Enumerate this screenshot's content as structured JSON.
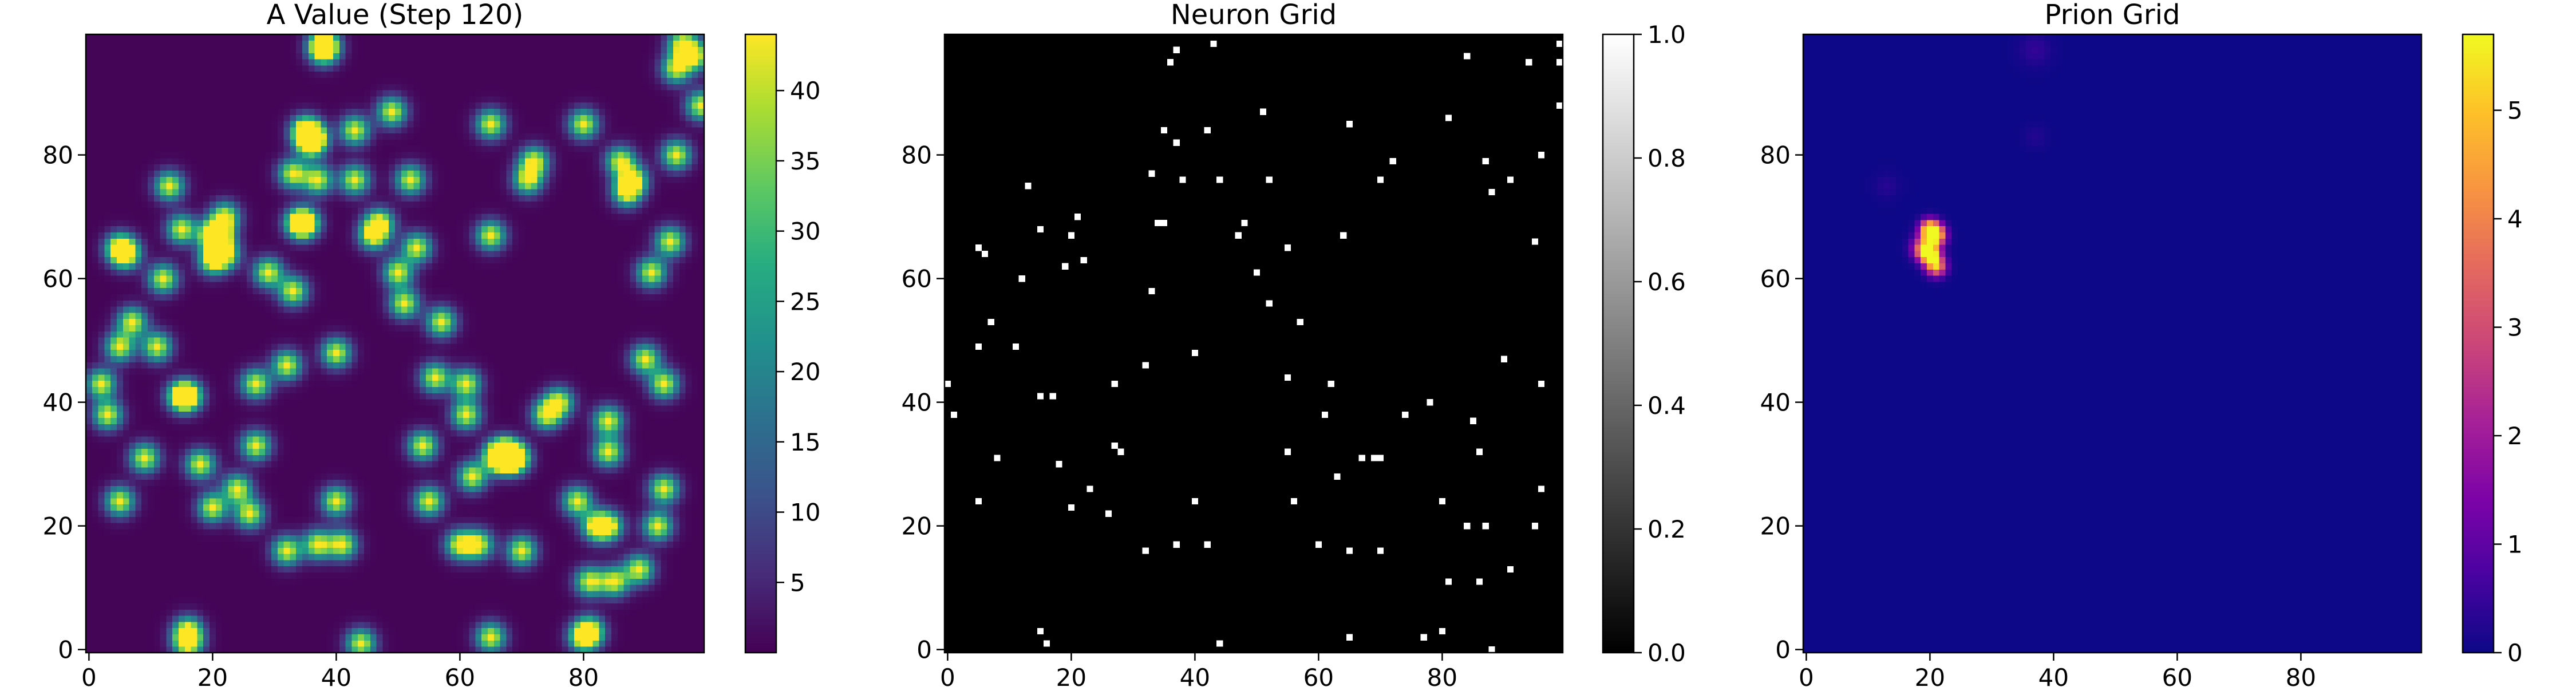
{
  "figure": {
    "background": "#ffffff"
  },
  "chart_data": [
    {
      "type": "heatmap",
      "title": "A Value (Step 120)",
      "colormap": "viridis",
      "grid_size": 100,
      "xlim": [
        0,
        99
      ],
      "ylim": [
        0,
        99
      ],
      "x_ticks": [
        0,
        20,
        40,
        60,
        80
      ],
      "y_ticks": [
        0,
        20,
        40,
        60,
        80
      ],
      "colorbar": {
        "min": 0,
        "max": 44,
        "ticks": [
          5,
          10,
          15,
          20,
          25,
          30,
          35,
          40
        ]
      },
      "field": {
        "base": 0.5,
        "peak": 43,
        "spread_cells": 1.6,
        "hotspots": [
          [
            2,
            43
          ],
          [
            3,
            38
          ],
          [
            5,
            24
          ],
          [
            5,
            49
          ],
          [
            5,
            65
          ],
          [
            6,
            64
          ],
          [
            7,
            53
          ],
          [
            9,
            31
          ],
          [
            11,
            49
          ],
          [
            12,
            60
          ],
          [
            13,
            75
          ],
          [
            15,
            41
          ],
          [
            15,
            68
          ],
          [
            16,
            41
          ],
          [
            16,
            3
          ],
          [
            16,
            1
          ],
          [
            18,
            30
          ],
          [
            20,
            63
          ],
          [
            20,
            67
          ],
          [
            20,
            23
          ],
          [
            21,
            67
          ],
          [
            22,
            64
          ],
          [
            22,
            70
          ],
          [
            24,
            26
          ],
          [
            26,
            22
          ],
          [
            27,
            33
          ],
          [
            27,
            43
          ],
          [
            29,
            61
          ],
          [
            32,
            16
          ],
          [
            32,
            46
          ],
          [
            33,
            58
          ],
          [
            33,
            77
          ],
          [
            34,
            69
          ],
          [
            35,
            69
          ],
          [
            35,
            84
          ],
          [
            36,
            83
          ],
          [
            36,
            82
          ],
          [
            37,
            17
          ],
          [
            37,
            76
          ],
          [
            38,
            98
          ],
          [
            38,
            97
          ],
          [
            40,
            48
          ],
          [
            40,
            24
          ],
          [
            41,
            17
          ],
          [
            43,
            84
          ],
          [
            43,
            76
          ],
          [
            44,
            1
          ],
          [
            46,
            67
          ],
          [
            47,
            69
          ],
          [
            49,
            87
          ],
          [
            50,
            61
          ],
          [
            51,
            56
          ],
          [
            52,
            76
          ],
          [
            53,
            65
          ],
          [
            54,
            33
          ],
          [
            55,
            24
          ],
          [
            56,
            44
          ],
          [
            57,
            53
          ],
          [
            60,
            17
          ],
          [
            61,
            38
          ],
          [
            61,
            43
          ],
          [
            62,
            28
          ],
          [
            63,
            17
          ],
          [
            65,
            67
          ],
          [
            65,
            85
          ],
          [
            65,
            2
          ],
          [
            66,
            31
          ],
          [
            67,
            32
          ],
          [
            68,
            31
          ],
          [
            69,
            31
          ],
          [
            70,
            16
          ],
          [
            71,
            76
          ],
          [
            72,
            79
          ],
          [
            74,
            38
          ],
          [
            76,
            40
          ],
          [
            79,
            24
          ],
          [
            80,
            2
          ],
          [
            80,
            85
          ],
          [
            81,
            11
          ],
          [
            81,
            3
          ],
          [
            82,
            20
          ],
          [
            84,
            20
          ],
          [
            84,
            32
          ],
          [
            84,
            37
          ],
          [
            85,
            11
          ],
          [
            86,
            79
          ],
          [
            87,
            74
          ],
          [
            88,
            76
          ],
          [
            89,
            13
          ],
          [
            90,
            47
          ],
          [
            91,
            61
          ],
          [
            92,
            20
          ],
          [
            93,
            26
          ],
          [
            93,
            43
          ],
          [
            94,
            66
          ],
          [
            95,
            80
          ],
          [
            95,
            94
          ],
          [
            96,
            98
          ],
          [
            98,
            96
          ],
          [
            99,
            88
          ]
        ]
      }
    },
    {
      "type": "heatmap",
      "title": "Neuron Grid",
      "colormap": "gray",
      "grid_size": 100,
      "xlim": [
        0,
        99
      ],
      "ylim": [
        0,
        99
      ],
      "x_ticks": [
        0,
        20,
        40,
        60,
        80
      ],
      "y_ticks": [
        0,
        20,
        40,
        60,
        80
      ],
      "colorbar": {
        "min": 0.0,
        "max": 1.0,
        "ticks": [
          "0.0",
          "0.2",
          "0.4",
          "0.6",
          "0.8",
          "1.0"
        ]
      },
      "cell_value_background": 0,
      "neurons": [
        [
          0,
          43
        ],
        [
          1,
          38
        ],
        [
          5,
          24
        ],
        [
          5,
          49
        ],
        [
          5,
          65
        ],
        [
          6,
          64
        ],
        [
          7,
          53
        ],
        [
          8,
          31
        ],
        [
          11,
          49
        ],
        [
          12,
          60
        ],
        [
          13,
          75
        ],
        [
          15,
          41
        ],
        [
          15,
          68
        ],
        [
          17,
          41
        ],
        [
          15,
          3
        ],
        [
          16,
          1
        ],
        [
          18,
          30
        ],
        [
          19,
          62
        ],
        [
          20,
          67
        ],
        [
          20,
          23
        ],
        [
          21,
          70
        ],
        [
          22,
          63
        ],
        [
          23,
          26
        ],
        [
          26,
          22
        ],
        [
          27,
          33
        ],
        [
          27,
          43
        ],
        [
          28,
          32
        ],
        [
          32,
          16
        ],
        [
          32,
          46
        ],
        [
          33,
          58
        ],
        [
          33,
          77
        ],
        [
          34,
          69
        ],
        [
          35,
          69
        ],
        [
          35,
          84
        ],
        [
          36,
          95
        ],
        [
          37,
          82
        ],
        [
          37,
          97
        ],
        [
          37,
          17
        ],
        [
          38,
          76
        ],
        [
          40,
          48
        ],
        [
          40,
          24
        ],
        [
          42,
          17
        ],
        [
          42,
          84
        ],
        [
          43,
          98
        ],
        [
          44,
          76
        ],
        [
          44,
          1
        ],
        [
          47,
          67
        ],
        [
          48,
          69
        ],
        [
          50,
          61
        ],
        [
          51,
          87
        ],
        [
          52,
          56
        ],
        [
          52,
          76
        ],
        [
          55,
          65
        ],
        [
          55,
          44
        ],
        [
          55,
          32
        ],
        [
          56,
          24
        ],
        [
          57,
          53
        ],
        [
          60,
          17
        ],
        [
          61,
          38
        ],
        [
          62,
          43
        ],
        [
          63,
          28
        ],
        [
          64,
          67
        ],
        [
          65,
          85
        ],
        [
          65,
          16
        ],
        [
          65,
          2
        ],
        [
          67,
          31
        ],
        [
          69,
          31
        ],
        [
          70,
          31
        ],
        [
          70,
          76
        ],
        [
          70,
          16
        ],
        [
          72,
          79
        ],
        [
          74,
          38
        ],
        [
          78,
          40
        ],
        [
          77,
          2
        ],
        [
          80,
          3
        ],
        [
          80,
          24
        ],
        [
          81,
          11
        ],
        [
          81,
          86
        ],
        [
          84,
          20
        ],
        [
          84,
          96
        ],
        [
          85,
          37
        ],
        [
          86,
          11
        ],
        [
          86,
          32
        ],
        [
          87,
          79
        ],
        [
          87,
          20
        ],
        [
          88,
          74
        ],
        [
          88,
          0
        ],
        [
          90,
          47
        ],
        [
          91,
          13
        ],
        [
          91,
          76
        ],
        [
          94,
          95
        ],
        [
          95,
          66
        ],
        [
          95,
          20
        ],
        [
          96,
          80
        ],
        [
          96,
          43
        ],
        [
          96,
          26
        ],
        [
          99,
          98
        ],
        [
          99,
          95
        ],
        [
          99,
          88
        ]
      ]
    },
    {
      "type": "heatmap",
      "title": "Prion Grid",
      "colormap": "plasma",
      "grid_size": 100,
      "xlim": [
        0,
        99
      ],
      "ylim": [
        0,
        99
      ],
      "x_ticks": [
        0,
        20,
        40,
        60,
        80
      ],
      "y_ticks": [
        0,
        20,
        40,
        60,
        80
      ],
      "colorbar": {
        "min": 0,
        "max": 5.7,
        "ticks": [
          0,
          1,
          2,
          3,
          4,
          5
        ]
      },
      "field": {
        "base": 0,
        "blobs": [
          {
            "x": 20,
            "y": 68,
            "peak": 5.7,
            "spread_cells": 1.1
          },
          {
            "x": 21,
            "y": 67,
            "peak": 4.9,
            "spread_cells": 1.1
          },
          {
            "x": 20,
            "y": 64,
            "peak": 5.6,
            "spread_cells": 1.1
          },
          {
            "x": 21,
            "y": 62,
            "peak": 4.6,
            "spread_cells": 1.1
          },
          {
            "x": 19,
            "y": 65,
            "peak": 3.8,
            "spread_cells": 1.3
          },
          {
            "x": 37,
            "y": 97,
            "peak": 0.45,
            "spread_cells": 1.8
          },
          {
            "x": 13,
            "y": 75,
            "peak": 0.3,
            "spread_cells": 1.5
          },
          {
            "x": 37,
            "y": 83,
            "peak": 0.25,
            "spread_cells": 1.3
          }
        ]
      }
    }
  ]
}
